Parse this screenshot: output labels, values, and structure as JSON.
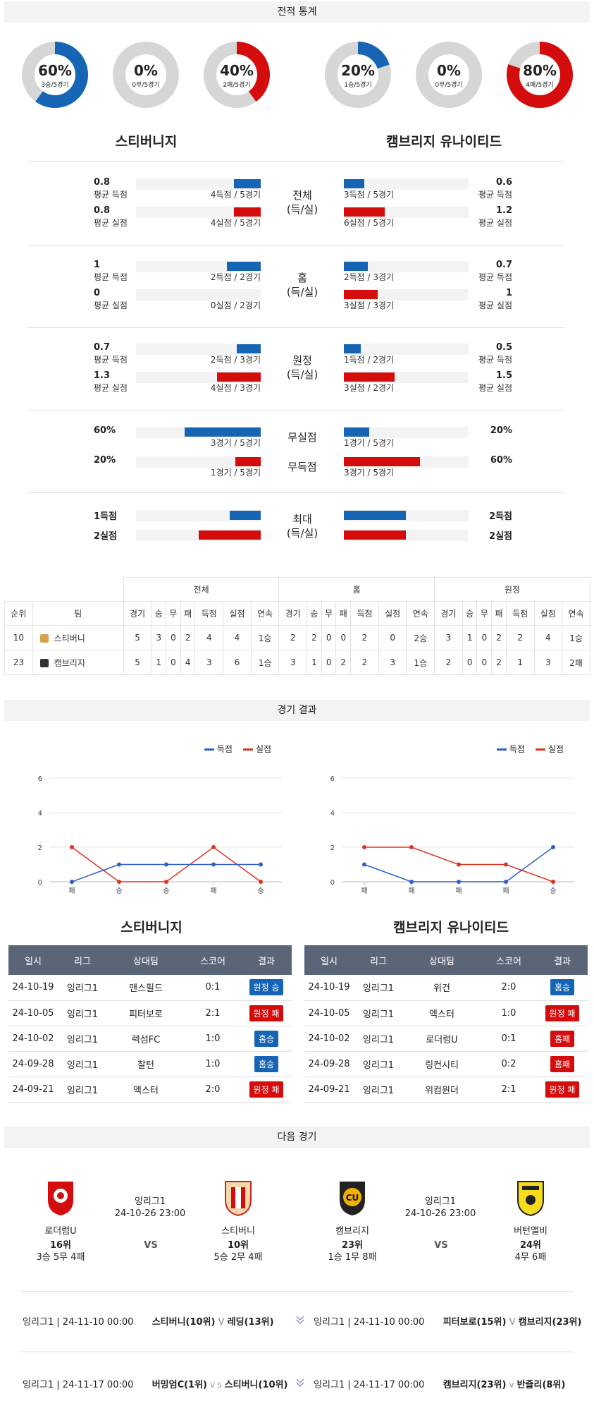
{
  "sections": {
    "record_stats": "전적 통계",
    "match_results": "경기 결과",
    "next_match": "다음 경기"
  },
  "donuts": [
    {
      "pct_value": 60,
      "pct": "60%",
      "sub": "3승/5경기",
      "color": "#1565b4"
    },
    {
      "pct_value": 0,
      "pct": "0%",
      "sub": "0무/5경기",
      "color": "#cccccc"
    },
    {
      "pct_value": 40,
      "pct": "40%",
      "sub": "2패/5경기",
      "color": "#d40c0c"
    },
    {
      "pct_value": 20,
      "pct": "20%",
      "sub": "1승/5경기",
      "color": "#1565b4"
    },
    {
      "pct_value": 0,
      "pct": "0%",
      "sub": "0무/5경기",
      "color": "#cccccc"
    },
    {
      "pct_value": 80,
      "pct": "80%",
      "sub": "4패/5경기",
      "color": "#d40c0c"
    }
  ],
  "teams": {
    "home": "스티버니지",
    "away": "캠브리지 유나이티드"
  },
  "stats": {
    "total": {
      "cat1": "전체",
      "cat2": "(득/실)",
      "l_score": "0.8",
      "l_score_label": "평균 득점",
      "l_score_cap": "4득점 / 5경기",
      "l_score_frac": 0.8,
      "l_concede": "0.8",
      "l_concede_label": "평균 실점",
      "l_concede_cap": "4실점 / 5경기",
      "l_concede_frac": 0.8,
      "r_score": "0.6",
      "r_score_label": "평균 득점",
      "r_score_cap": "3득점 / 5경기",
      "r_score_frac": 0.6,
      "r_concede": "1.2",
      "r_concede_label": "평균 실점",
      "r_concede_cap": "6실점 / 5경기",
      "r_concede_frac": 1.2
    },
    "home": {
      "cat1": "홈",
      "cat2": "(득/실)",
      "l_score": "1",
      "l_score_label": "평균 득점",
      "l_score_cap": "2득점 / 2경기",
      "l_score_frac": 1,
      "l_concede": "0",
      "l_concede_label": "평균 실점",
      "l_concede_cap": "0실점 / 2경기",
      "l_concede_frac": 0,
      "r_score": "0.7",
      "r_score_label": "평균 득점",
      "r_score_cap": "2득점 / 3경기",
      "r_score_frac": 0.7,
      "r_concede": "1",
      "r_concede_label": "평균 실점",
      "r_concede_cap": "3실점 / 3경기",
      "r_concede_frac": 1
    },
    "away": {
      "cat1": "원정",
      "cat2": "(득/실)",
      "l_score": "0.7",
      "l_score_label": "평균 득점",
      "l_score_cap": "2득점 / 3경기",
      "l_score_frac": 0.7,
      "l_concede": "1.3",
      "l_concede_label": "평균 실점",
      "l_concede_cap": "4실점 / 3경기",
      "l_concede_frac": 1.3,
      "r_score": "0.5",
      "r_score_label": "평균 득점",
      "r_score_cap": "1득점 / 2경기",
      "r_score_frac": 0.5,
      "r_concede": "1.5",
      "r_concede_label": "평균 실점",
      "r_concede_cap": "3실점 / 2경기",
      "r_concede_frac": 1.5
    },
    "clean": {
      "cat_clean": "무실점",
      "cat_noscore": "무득점",
      "l_clean": "60%",
      "l_clean_cap": "3경기 / 5경기",
      "l_clean_frac": 0.6,
      "l_noscore": "20%",
      "l_noscore_cap": "1경기 / 5경기",
      "l_noscore_frac": 0.2,
      "r_clean": "20%",
      "r_clean_cap": "1경기 / 5경기",
      "r_clean_frac": 0.2,
      "r_noscore": "60%",
      "r_noscore_cap": "3경기 / 5경기",
      "r_noscore_frac": 0.6
    },
    "max": {
      "cat1": "최대",
      "cat2": "(득/실)",
      "l_score": "1득점",
      "l_score_frac": 1,
      "l_concede": "2실점",
      "l_concede_frac": 2,
      "r_score": "2득점",
      "r_score_frac": 2,
      "r_concede": "2실점",
      "r_concede_frac": 2
    }
  },
  "standings": {
    "groups": [
      "전체",
      "홈",
      "원정"
    ],
    "cols": [
      "순위",
      "팀",
      "경기",
      "승",
      "무",
      "패",
      "득점",
      "실점",
      "연속"
    ],
    "rows": [
      {
        "rank": "10",
        "team": "스티버니",
        "t": [
          "5",
          "3",
          "0",
          "2",
          "4",
          "4",
          "1승"
        ],
        "h": [
          "2",
          "2",
          "0",
          "0",
          "2",
          "0",
          "2승"
        ],
        "a": [
          "3",
          "1",
          "0",
          "2",
          "2",
          "4",
          "1승"
        ]
      },
      {
        "rank": "23",
        "team": "캠브리지",
        "t": [
          "5",
          "1",
          "0",
          "4",
          "3",
          "6",
          "1승"
        ],
        "h": [
          "3",
          "1",
          "0",
          "2",
          "2",
          "3",
          "1승"
        ],
        "a": [
          "2",
          "0",
          "0",
          "2",
          "1",
          "3",
          "2패"
        ]
      }
    ]
  },
  "charts": {
    "legend_score": "득점",
    "legend_concede": "실점",
    "y_ticks": [
      "0",
      "2",
      "4",
      "6"
    ],
    "left": {
      "x": [
        "패",
        "승",
        "승",
        "패",
        "승"
      ],
      "scored": [
        0,
        1,
        1,
        1,
        1
      ],
      "conceded": [
        2,
        0,
        0,
        2,
        0
      ]
    },
    "right": {
      "x": [
        "패",
        "패",
        "패",
        "패",
        "승"
      ],
      "scored": [
        1,
        0,
        0,
        0,
        2
      ],
      "conceded": [
        2,
        2,
        1,
        1,
        0
      ]
    },
    "colors": {
      "scored": "#2f5fc4",
      "conceded": "#dd3322"
    }
  },
  "chart_data": [
    {
      "type": "line",
      "x": [
        "패",
        "승",
        "승",
        "패",
        "승"
      ],
      "ylim": [
        0,
        6
      ],
      "series": [
        {
          "name": "득점",
          "values": [
            0,
            1,
            1,
            1,
            1
          ]
        },
        {
          "name": "실점",
          "values": [
            2,
            0,
            0,
            2,
            0
          ]
        }
      ]
    },
    {
      "type": "line",
      "x": [
        "패",
        "패",
        "패",
        "패",
        "승"
      ],
      "ylim": [
        0,
        6
      ],
      "series": [
        {
          "name": "득점",
          "values": [
            1,
            0,
            0,
            0,
            2
          ]
        },
        {
          "name": "실점",
          "values": [
            2,
            2,
            1,
            1,
            0
          ]
        }
      ]
    }
  ],
  "results": {
    "headers": [
      "일시",
      "리그",
      "상대팀",
      "스코어",
      "결과"
    ],
    "left": [
      {
        "date": "24-10-19",
        "league": "잉리그1",
        "opp": "맨스필드",
        "score": "0:1",
        "result": "원정 승",
        "win": true
      },
      {
        "date": "24-10-05",
        "league": "잉리그1",
        "opp": "피터보로",
        "score": "2:1",
        "result": "원정 패",
        "win": false
      },
      {
        "date": "24-10-02",
        "league": "잉리그1",
        "opp": "렉섬FC",
        "score": "1:0",
        "result": "홈승",
        "win": true
      },
      {
        "date": "24-09-28",
        "league": "잉리그1",
        "opp": "찰턴",
        "score": "1:0",
        "result": "홈승",
        "win": true
      },
      {
        "date": "24-09-21",
        "league": "잉리그1",
        "opp": "엑스터",
        "score": "2:0",
        "result": "원정 패",
        "win": false
      }
    ],
    "right": [
      {
        "date": "24-10-19",
        "league": "잉리그1",
        "opp": "위건",
        "score": "2:0",
        "result": "홈승",
        "win": true
      },
      {
        "date": "24-10-05",
        "league": "잉리그1",
        "opp": "엑스터",
        "score": "1:0",
        "result": "원정 패",
        "win": false
      },
      {
        "date": "24-10-02",
        "league": "잉리그1",
        "opp": "로더럼U",
        "score": "0:1",
        "result": "홈패",
        "win": false
      },
      {
        "date": "24-09-28",
        "league": "잉리그1",
        "opp": "링컨시티",
        "score": "0:2",
        "result": "홈패",
        "win": false
      },
      {
        "date": "24-09-21",
        "league": "잉리그1",
        "opp": "위컴원더",
        "score": "2:1",
        "result": "원정 패",
        "win": false
      }
    ]
  },
  "next": {
    "left": {
      "league": "잉리그1",
      "datetime": "24-10-26 23:00",
      "vs": "VS",
      "team_a": "로더럼U",
      "rank_a": "16위",
      "rec_a": "3승 5무 4패",
      "team_b": "스티버니",
      "rank_b": "10위",
      "rec_b": "5승 2무 4패"
    },
    "right": {
      "league": "잉리그1",
      "datetime": "24-10-26 23:00",
      "vs": "VS",
      "team_a": "캠브리지",
      "rank_a": "23위",
      "rec_a": "1승 1무 8패",
      "team_b": "버턴앨비",
      "rank_b": "24위",
      "rec_b": "4무 6패"
    }
  },
  "fixtures": {
    "left": [
      {
        "meta": "잉리그1 | 24-11-10 00:00",
        "home": "스티버니(10위)",
        "v": "V",
        "away": "레딩(13위)"
      },
      {
        "meta": "잉리그1 | 24-11-17 00:00",
        "home": "버밍엄C(1위)",
        "v": "V S",
        "away": "스티버니(10위)"
      }
    ],
    "right": [
      {
        "meta": "잉리그1 | 24-11-10 00:00",
        "home": "피터보로(15위)",
        "v": "V",
        "away": "캠브리지(23위)"
      },
      {
        "meta": "잉리그1 | 24-11-17 00:00",
        "home": "캠브리지(23위)",
        "v": "V",
        "away": "반즐리(8위)"
      }
    ]
  }
}
